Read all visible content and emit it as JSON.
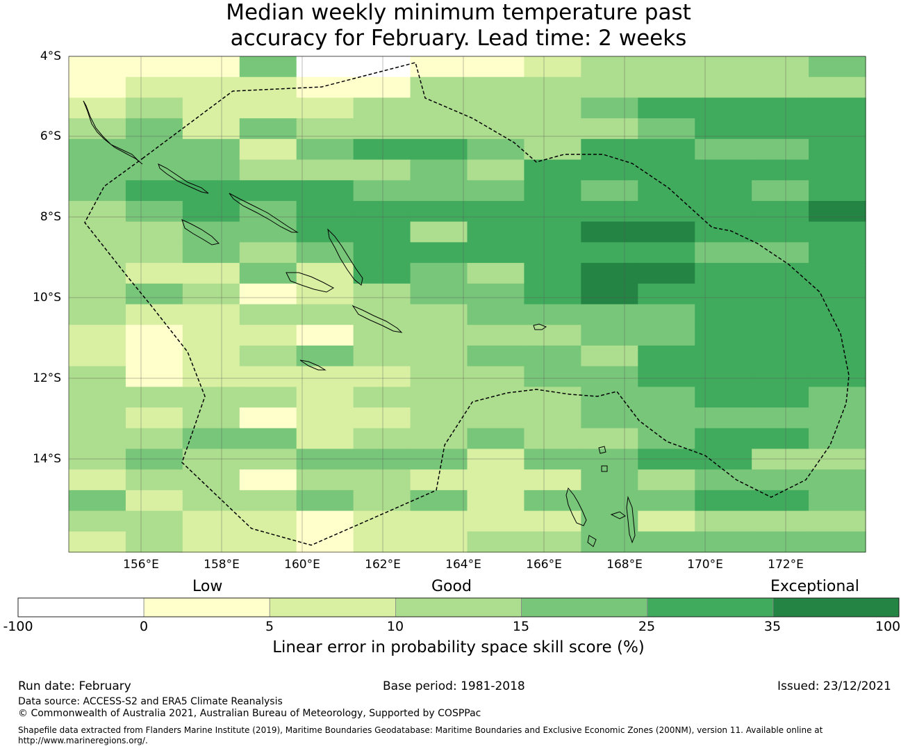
{
  "title": {
    "line1": "Median weekly minimum temperature past",
    "line2": "accuracy for February. Lead time: 2 weeks"
  },
  "axes": {
    "lat_labels": [
      "4°S",
      "6°S",
      "8°S",
      "10°S",
      "12°S",
      "14°S"
    ],
    "lon_labels": [
      "156°E",
      "158°E",
      "160°E",
      "162°E",
      "164°E",
      "166°E",
      "168°E",
      "170°E",
      "172°E"
    ]
  },
  "colorbar": {
    "categories": [
      "Low",
      "Good",
      "Exceptional"
    ],
    "ticks": [
      "-100",
      "0",
      "5",
      "10",
      "15",
      "25",
      "35",
      "100"
    ],
    "colors": [
      "#ffffff",
      "#ffffcc",
      "#d9f0a3",
      "#addd8e",
      "#78c679",
      "#41ab5d",
      "#238443"
    ],
    "label": "Linear error in probability space skill score (%)"
  },
  "grid": {
    "lat_top": -4,
    "lat_bottom": -16.3,
    "lon_left": 154.2,
    "lon_right": 174,
    "rows": [
      "11140011233334",
      "12221133333333",
      "23222333345555",
      "34243333334555",
      "44424554355445",
      "44433343555555",
      "45555444545545",
      "34545555555556",
      "33445535566555",
      "33434555555445",
      "32242543566555",
      "34312344565555",
      "32233334444555",
      "21221333344555",
      "21234334435555",
      "31222233445555",
      "33332333344554",
      "32312233344444",
      "33442334334554",
      "34334442445533",
      "23313322243444",
      "42334342444554",
      "33221222242333",
      "23221223344444"
    ]
  },
  "footer": {
    "run_date": "Run date: February",
    "base_period": "Base period: 1981-2018",
    "issued": "Issued: 23/12/2021",
    "data_source": "Data source: ACCESS-S2 and ERA5 Climate Reanalysis",
    "copyright": "© Commonwealth of Australia 2021, Australian Bureau of Meteorology, Supported by COSPPac",
    "shapefile_line1": "Shapefile data extracted from Flanders Marine Institute (2019), Maritime Boundaries Geodatabase: Maritime Boundaries and Exclusive Economic Zones (200NM), version 11. Available online at",
    "shapefile_line2": "http://www.marineregions.org/."
  }
}
